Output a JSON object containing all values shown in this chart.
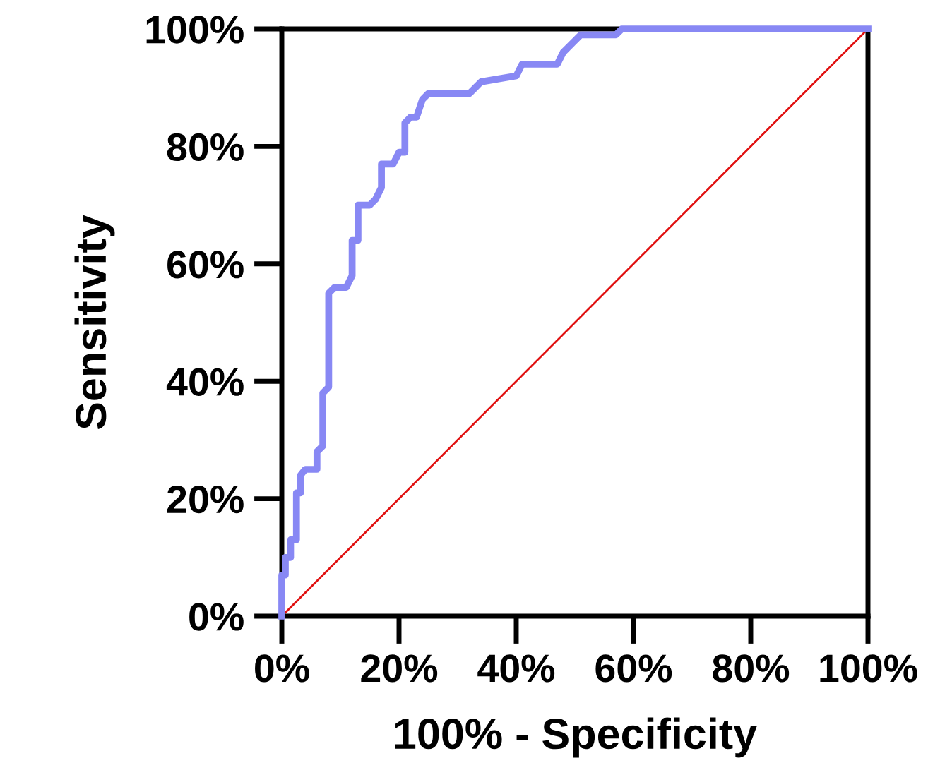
{
  "chart_data": {
    "type": "line",
    "xlabel": "100% - Specificity",
    "ylabel": "Sensitivity",
    "xlim": [
      0,
      100
    ],
    "ylim": [
      0,
      100
    ],
    "xticks": [
      {
        "value": 0,
        "label": "0%"
      },
      {
        "value": 20,
        "label": "20%"
      },
      {
        "value": 40,
        "label": "40%"
      },
      {
        "value": 60,
        "label": "60%"
      },
      {
        "value": 80,
        "label": "80%"
      },
      {
        "value": 100,
        "label": "100%"
      }
    ],
    "yticks": [
      {
        "value": 0,
        "label": "0%"
      },
      {
        "value": 20,
        "label": "20%"
      },
      {
        "value": 40,
        "label": "40%"
      },
      {
        "value": 60,
        "label": "60%"
      },
      {
        "value": 80,
        "label": "80%"
      },
      {
        "value": 100,
        "label": "100%"
      }
    ],
    "grid": false,
    "legend": false,
    "marker": "none",
    "series": [
      {
        "color": "#8888f4",
        "x": [
          0,
          0,
          0.6,
          0.6,
          1.5,
          1.5,
          2.5,
          2.5,
          3.2,
          3.2,
          4,
          6,
          6,
          7,
          7,
          8,
          8,
          9,
          11,
          12,
          12,
          13,
          13,
          15,
          16,
          17,
          17,
          19,
          20,
          21,
          21,
          22,
          23,
          24,
          25,
          32,
          33,
          34,
          40,
          41,
          47,
          48,
          50,
          51,
          57,
          58,
          100
        ],
        "values": [
          0,
          7,
          7,
          10,
          10,
          13,
          13,
          21,
          21,
          24,
          25,
          25,
          28,
          29,
          38,
          39,
          55,
          56,
          56,
          58,
          64,
          64,
          70,
          70,
          71,
          73,
          77,
          77,
          79,
          79,
          84,
          85,
          85,
          88,
          89,
          89,
          90,
          91,
          92,
          94,
          94,
          96,
          98,
          99,
          99,
          100,
          100
        ]
      },
      {
        "color": "#e01010",
        "x": [
          0,
          100
        ],
        "values": [
          0,
          100
        ]
      }
    ]
  }
}
